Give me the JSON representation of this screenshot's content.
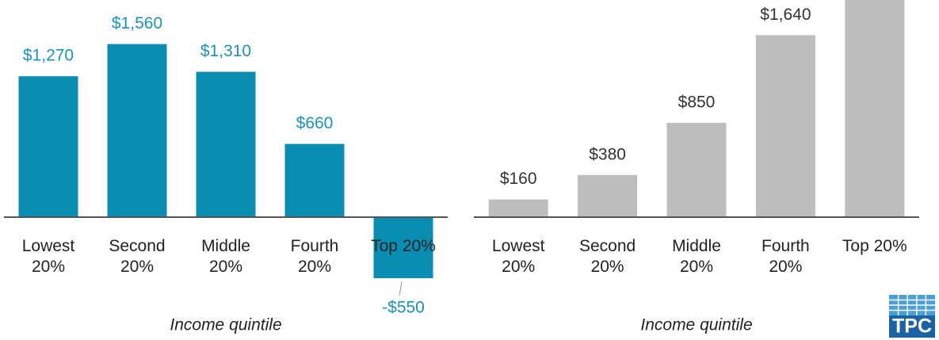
{
  "chart_data": [
    {
      "type": "bar",
      "categories": [
        [
          "Lowest",
          "20%"
        ],
        [
          "Second",
          "20%"
        ],
        [
          "Middle",
          "20%"
        ],
        [
          "Fourth",
          "20%"
        ],
        [
          "Top 20%"
        ]
      ],
      "values": [
        1270,
        1560,
        1310,
        660,
        -550
      ],
      "value_labels": [
        "$1,270",
        "$1,560",
        "$1,310",
        "$660",
        "-$550"
      ],
      "color": "#0a8db2",
      "label_color": "#1a93b8",
      "xlabel": "Income quintile",
      "ylim": [
        -1107,
        1957
      ]
    },
    {
      "type": "bar",
      "categories": [
        [
          "Lowest",
          "20%"
        ],
        [
          "Second",
          "20%"
        ],
        [
          "Middle",
          "20%"
        ],
        [
          "Fourth",
          "20%"
        ],
        [
          "Top 20%"
        ]
      ],
      "values": [
        160,
        380,
        850,
        1640,
        2100
      ],
      "value_labels": [
        "$160",
        "$380",
        "$850",
        "$1,640",
        null
      ],
      "color": "#bdbdbe",
      "label_color": "#333333",
      "xlabel": "Income quintile",
      "ylim": [
        -1107,
        1957
      ]
    }
  ],
  "logo": "TPC"
}
